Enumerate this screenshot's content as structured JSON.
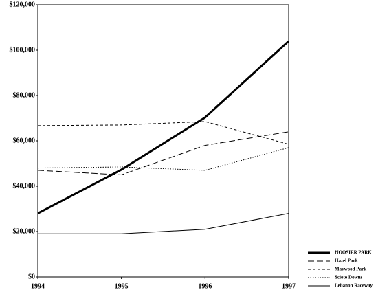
{
  "chart_data": {
    "type": "line",
    "x": [
      1994,
      1995,
      1996,
      1997
    ],
    "xlim": [
      1994,
      1997
    ],
    "xticks": [
      1994,
      1995,
      1996,
      1997
    ],
    "ylim": [
      0,
      120000
    ],
    "yticks": [
      {
        "value": 0,
        "label": "$0"
      },
      {
        "value": 20000,
        "label": "$20,000"
      },
      {
        "value": 40000,
        "label": "$40,000"
      },
      {
        "value": 60000,
        "label": "$60,000"
      },
      {
        "value": 80000,
        "label": "$80,000"
      },
      {
        "value": 100000,
        "label": "$100,000"
      },
      {
        "value": 120000,
        "label": "$120,000"
      }
    ],
    "grid": false,
    "legend": "bottom-right",
    "series": [
      {
        "name": "HOOSIER PARK",
        "color": "#000000",
        "style": "bold",
        "values": [
          28000,
          47300,
          70300,
          104000
        ]
      },
      {
        "name": "Hazel Park",
        "color": "#000000",
        "style": "long-dash",
        "values": [
          47000,
          45000,
          58000,
          64000
        ]
      },
      {
        "name": "Maywood Park",
        "color": "#000000",
        "style": "dash",
        "values": [
          66700,
          67000,
          68500,
          58500
        ]
      },
      {
        "name": "Scioto Downs",
        "color": "#000000",
        "style": "dot",
        "values": [
          48000,
          48500,
          47000,
          57000
        ]
      },
      {
        "name": "Lebanon Raceway",
        "color": "#000000",
        "style": "thin",
        "values": [
          19000,
          19000,
          21000,
          28000
        ]
      }
    ]
  }
}
